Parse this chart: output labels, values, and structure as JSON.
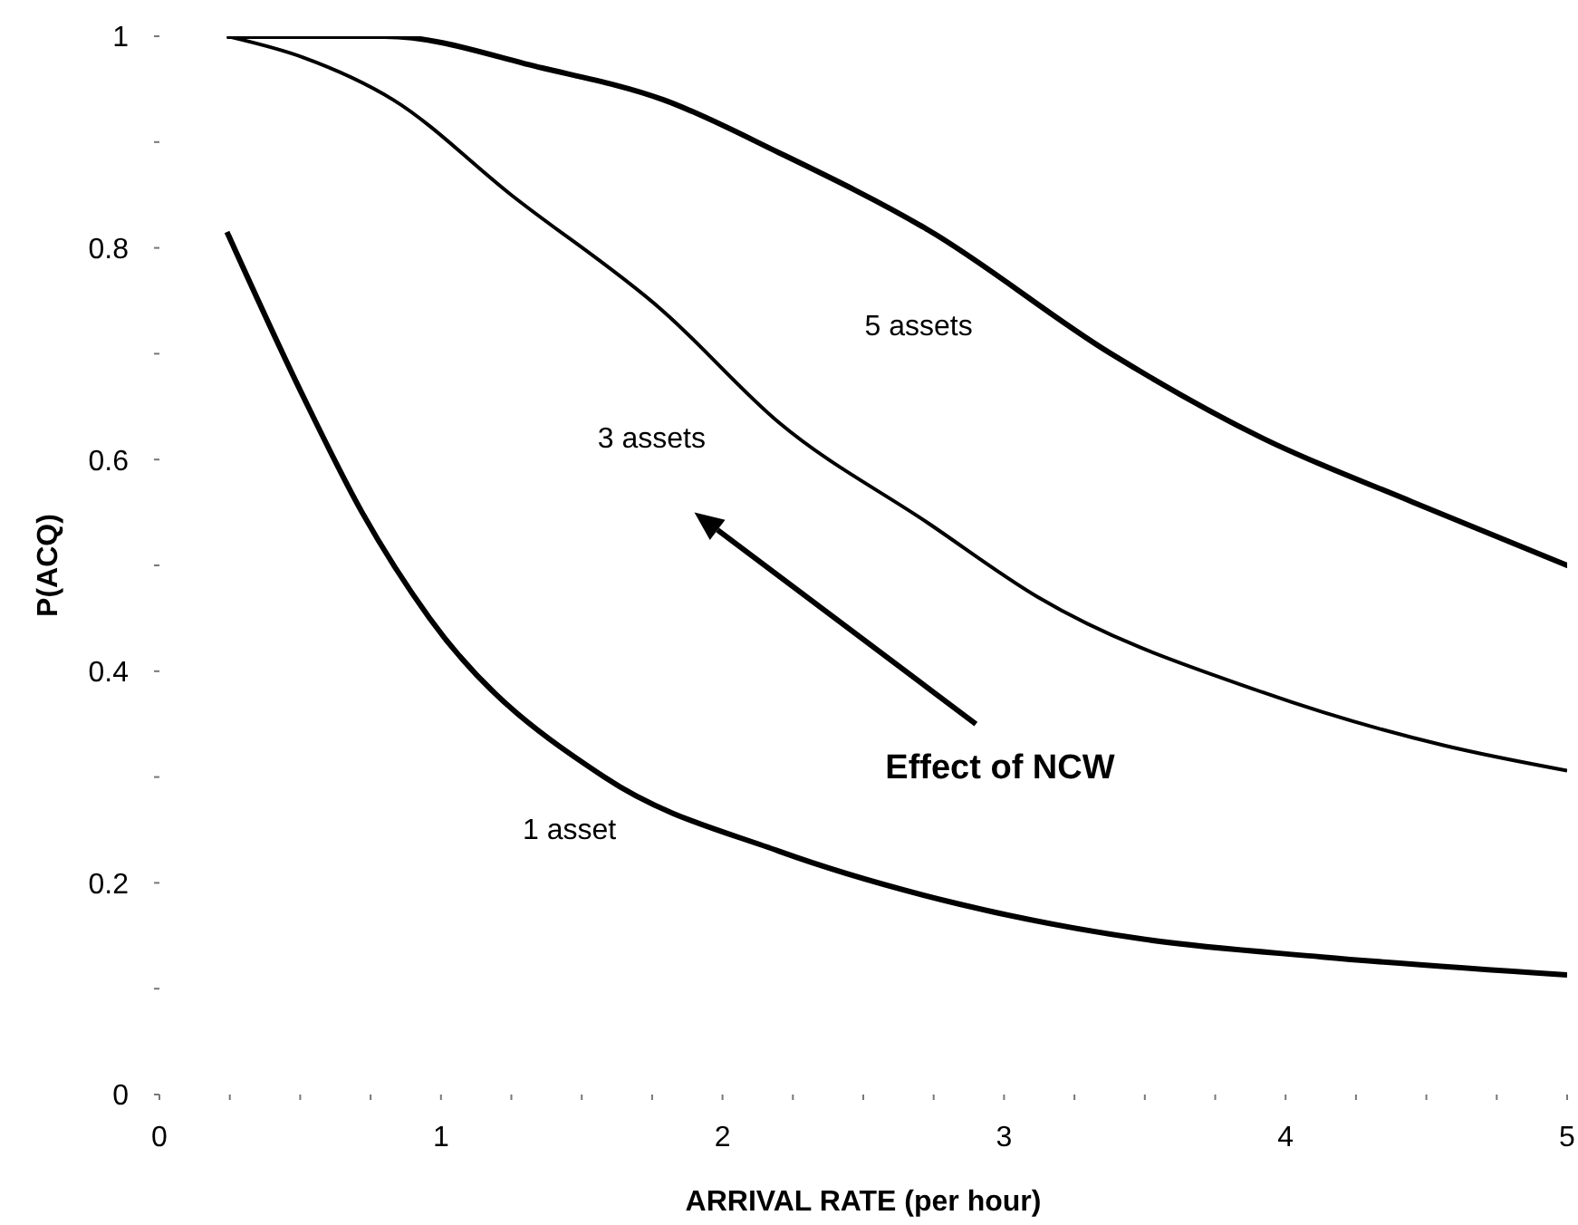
{
  "chart_data": {
    "type": "line",
    "xlabel": "ARRIVAL RATE (per hour)",
    "ylabel": "P(ACQ)",
    "xlim": [
      0,
      5
    ],
    "ylim": [
      0,
      1
    ],
    "xticks": [
      0,
      {
        "value": 0.25,
        "label": null
      },
      {
        "value": 0.5,
        "label": null
      },
      {
        "value": 0.75,
        "label": null
      },
      1,
      {
        "value": 1.25,
        "label": null
      },
      {
        "value": 1.5,
        "label": null
      },
      {
        "value": 1.75,
        "label": null
      },
      2,
      {
        "value": 2.25,
        "label": null
      },
      {
        "value": 2.5,
        "label": null
      },
      {
        "value": 2.75,
        "label": null
      },
      3,
      {
        "value": 3.25,
        "label": null
      },
      {
        "value": 3.5,
        "label": null
      },
      {
        "value": 3.75,
        "label": null
      },
      4,
      {
        "value": 4.25,
        "label": null
      },
      {
        "value": 4.5,
        "label": null
      },
      {
        "value": 4.75,
        "label": null
      },
      5
    ],
    "yticks": [
      0,
      {
        "value": 0.1,
        "label": null
      },
      0.2,
      {
        "value": 0.3,
        "label": null
      },
      0.4,
      {
        "value": 0.5,
        "label": null
      },
      0.6,
      {
        "value": 0.7,
        "label": null
      },
      0.8,
      {
        "value": 0.9,
        "label": null
      },
      1
    ],
    "marker": "none",
    "line_style": "solid",
    "annotations": [
      "Effect of NCW"
    ],
    "series": [
      {
        "name": "1 asset",
        "color": "#000000",
        "x": [
          0.24,
          0.51,
          0.72,
          0.96,
          1.58,
          2.2,
          2.84,
          3.49,
          4.13,
          5.0
        ],
        "values": [
          0.815,
          0.66,
          0.55,
          0.45,
          0.3,
          0.23,
          0.18,
          0.147,
          0.13,
          0.113
        ]
      },
      {
        "name": "3 assets",
        "color": "#000000",
        "x": [
          0.24,
          0.51,
          0.83,
          1.25,
          1.79,
          2.2,
          2.73,
          3.12,
          3.92,
          4.56,
          5.0
        ],
        "values": [
          1.0,
          0.98,
          0.94,
          0.85,
          0.74,
          0.635,
          0.54,
          0.47,
          0.38,
          0.33,
          0.306
        ]
      },
      {
        "name": "5 assets",
        "color": "#000000",
        "x": [
          0.24,
          0.8,
          1.36,
          1.79,
          2.2,
          2.73,
          3.38,
          3.92,
          4.45,
          5.0
        ],
        "values": [
          1.0,
          1.0,
          0.97,
          0.94,
          0.89,
          0.817,
          0.7,
          0.62,
          0.56,
          0.5
        ]
      }
    ]
  }
}
